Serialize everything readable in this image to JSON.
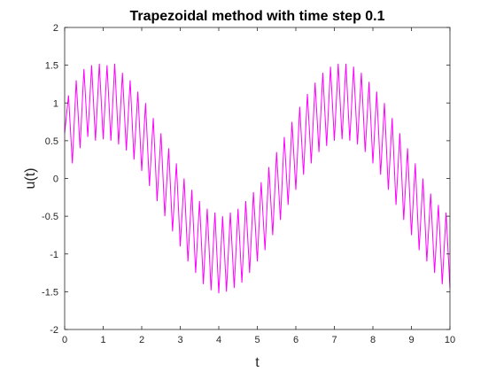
{
  "chart_data": {
    "type": "line",
    "title": "Trapezoidal method with time step 0.1",
    "xlabel": "t",
    "ylabel": "u(t)",
    "xlim": [
      0,
      10
    ],
    "ylim": [
      -2,
      2
    ],
    "xticks": [
      0,
      1,
      2,
      3,
      4,
      5,
      6,
      7,
      8,
      9,
      10
    ],
    "yticks": [
      -2,
      -1.5,
      -1,
      -0.5,
      0,
      0.5,
      1,
      1.5,
      2
    ],
    "ytick_labels": [
      "-2",
      "-1.5",
      "-1",
      "-0.5",
      "0",
      "0.5",
      "1",
      "1.5",
      "2"
    ],
    "grid": false,
    "legend": "none",
    "series": [
      {
        "color": "#ff00ff",
        "x": [
          0,
          0.1,
          0.2,
          0.3,
          0.4,
          0.5,
          0.6,
          0.7,
          0.8,
          0.9,
          1.0,
          1.1,
          1.2,
          1.3,
          1.4,
          1.5,
          1.6,
          1.7,
          1.8,
          1.9,
          2.0,
          2.1,
          2.2,
          2.3,
          2.4,
          2.5,
          2.6,
          2.7,
          2.8,
          2.9,
          3.0,
          3.1,
          3.2,
          3.3,
          3.4,
          3.5,
          3.6,
          3.7,
          3.8,
          3.9,
          4.0,
          4.1,
          4.2,
          4.3,
          4.4,
          4.5,
          4.6,
          4.7,
          4.8,
          4.9,
          5.0,
          5.1,
          5.2,
          5.3,
          5.4,
          5.5,
          5.6,
          5.7,
          5.8,
          5.9,
          6.0,
          6.1,
          6.2,
          6.3,
          6.4,
          6.5,
          6.6,
          6.7,
          6.8,
          6.9,
          7.0,
          7.1,
          7.2,
          7.3,
          7.4,
          7.5,
          7.6,
          7.7,
          7.8,
          7.9,
          8.0,
          8.1,
          8.2,
          8.3,
          8.4,
          8.5,
          8.6,
          8.7,
          8.8,
          8.9,
          9.0,
          9.1,
          9.2,
          9.3,
          9.4,
          9.5,
          9.6,
          9.7,
          9.8,
          9.9,
          10.0
        ],
        "y": [
          0.6,
          1.1,
          0.2,
          1.3,
          0.4,
          1.45,
          0.55,
          1.5,
          0.5,
          1.52,
          0.52,
          1.5,
          0.5,
          1.52,
          0.45,
          1.4,
          0.37,
          1.3,
          0.25,
          1.15,
          0.1,
          1.0,
          -0.1,
          0.8,
          -0.3,
          0.6,
          -0.5,
          0.4,
          -0.7,
          0.2,
          -0.9,
          0.0,
          -1.1,
          -0.15,
          -1.25,
          -0.3,
          -1.4,
          -0.4,
          -1.48,
          -0.45,
          -1.52,
          -0.5,
          -1.5,
          -0.45,
          -1.45,
          -0.4,
          -1.38,
          -0.3,
          -1.25,
          -0.18,
          -1.1,
          -0.05,
          -0.95,
          0.15,
          -0.75,
          0.35,
          -0.55,
          0.55,
          -0.35,
          0.75,
          -0.15,
          0.95,
          0.05,
          1.12,
          0.2,
          1.27,
          0.35,
          1.4,
          0.43,
          1.48,
          0.5,
          1.52,
          0.52,
          1.52,
          0.5,
          1.48,
          0.45,
          1.4,
          0.35,
          1.28,
          0.2,
          1.15,
          0.05,
          1.0,
          -0.15,
          0.8,
          -0.35,
          0.6,
          -0.55,
          0.4,
          -0.75,
          0.2,
          -0.95,
          0.0,
          -1.1,
          -0.2,
          -1.25,
          -0.35,
          -1.4,
          -0.45,
          -1.45
        ]
      }
    ]
  }
}
